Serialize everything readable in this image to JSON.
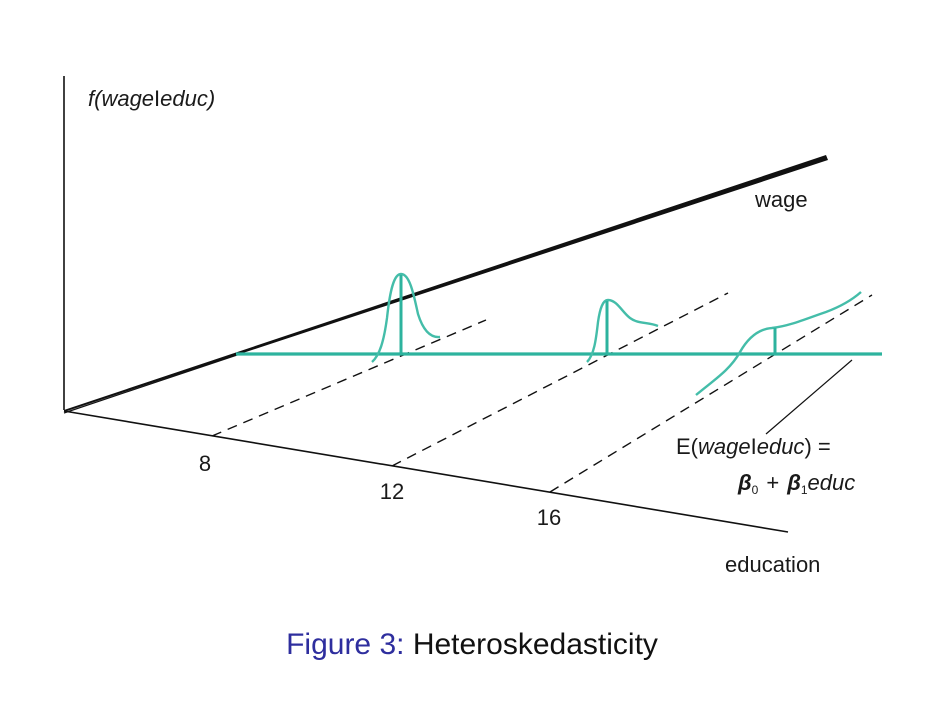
{
  "diagram": {
    "y_axis_label": {
      "prefix": "f(",
      "var": "wage",
      "bar": "I",
      "given": "educ",
      "suffix": ")"
    },
    "wage_axis_label": "wage",
    "education_axis_label": "education",
    "education_ticks": [
      "8",
      "12",
      "16"
    ],
    "regression_label": {
      "line1_prefix": "E(",
      "line1_var": "wage",
      "line1_bar": "I",
      "line1_given": "educ",
      "line1_suffix": ") =",
      "beta0": "β",
      "sub0": "0",
      "plus": "+",
      "beta1": "β",
      "sub1": "1",
      "educ": "educ"
    },
    "colors": {
      "axes": "#111111",
      "regression_line": "#2db39e",
      "density_curves": "#44bda9",
      "caption_label": "#2e2e9e"
    }
  },
  "caption": {
    "label": "Figure 3:",
    "text": "Heteroskedasticity"
  }
}
